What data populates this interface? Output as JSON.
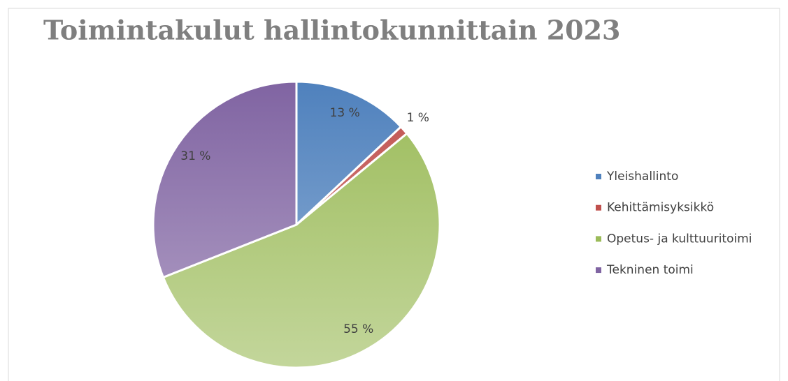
{
  "chart_data": {
    "type": "pie",
    "title": "Toimintakulut hallintokunnittain 2023",
    "categories": [
      "Yleishallinto",
      "Kehittämisyksikkö",
      "Opetus- ja kulttuuritoimi",
      "Tekninen toimi"
    ],
    "values": [
      13,
      1,
      55,
      31
    ],
    "value_labels": [
      "13 %",
      "1 %",
      "55 %",
      "31 %"
    ],
    "colors": [
      [
        "#4f81bd",
        "#95b3d7"
      ],
      [
        "#c0504d",
        "#d99694"
      ],
      [
        "#9bbb59",
        "#c3d69b"
      ],
      [
        "#8064a2",
        "#b3a2c7"
      ]
    ],
    "legend": "right"
  }
}
